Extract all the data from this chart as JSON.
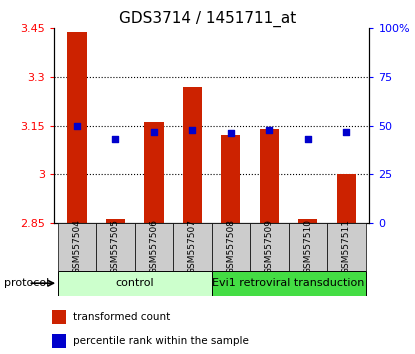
{
  "title": "GDS3714 / 1451711_at",
  "samples": [
    "GSM557504",
    "GSM557505",
    "GSM557506",
    "GSM557507",
    "GSM557508",
    "GSM557509",
    "GSM557510",
    "GSM557511"
  ],
  "bar_values": [
    3.44,
    2.863,
    3.16,
    3.27,
    3.12,
    3.14,
    2.862,
    3.0
  ],
  "bar_base": 2.85,
  "percentile_values": [
    50,
    43,
    47,
    48,
    46,
    48,
    43,
    47
  ],
  "bar_color": "#cc2200",
  "dot_color": "#0000cc",
  "ylim_left": [
    2.85,
    3.45
  ],
  "ylim_right": [
    0,
    100
  ],
  "yticks_left": [
    2.85,
    3.0,
    3.15,
    3.3,
    3.45
  ],
  "ytick_labels_left": [
    "2.85",
    "3",
    "3.15",
    "3.3",
    "3.45"
  ],
  "yticks_right": [
    0,
    25,
    50,
    75,
    100
  ],
  "ytick_labels_right": [
    "0",
    "25",
    "50",
    "75",
    "100%"
  ],
  "grid_values": [
    3.0,
    3.15,
    3.3
  ],
  "n_control": 4,
  "n_treatment": 4,
  "control_label": "control",
  "treatment_label": "Evi1 retroviral transduction",
  "protocol_label": "protocol",
  "control_bg": "#ccffcc",
  "treatment_bg": "#44dd44",
  "sample_bg": "#cccccc",
  "legend_bar_label": "transformed count",
  "legend_dot_label": "percentile rank within the sample",
  "bar_width": 0.5,
  "title_fontsize": 11
}
